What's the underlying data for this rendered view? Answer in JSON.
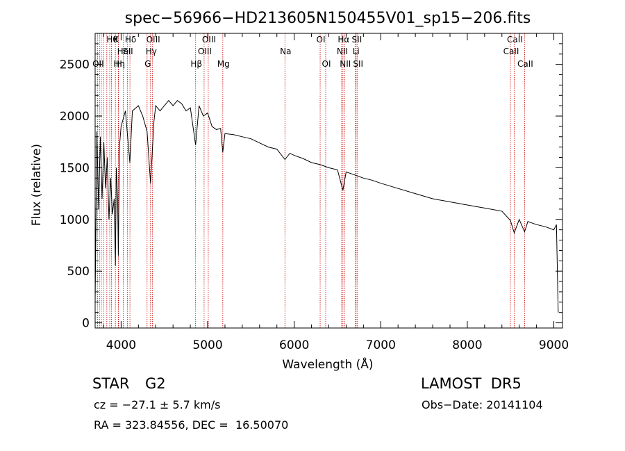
{
  "chart_data": {
    "type": "line",
    "title": "spec−56966−HD213605N150455V01_sp15−206.fits",
    "xlabel": "Wavelength (Å)",
    "ylabel": "Flux (relative)",
    "xlim": [
      3700,
      9100
    ],
    "ylim": [
      -50,
      2800
    ],
    "xticks": [
      4000,
      5000,
      6000,
      7000,
      8000,
      9000
    ],
    "xtick_labels": [
      "4000",
      "5000",
      "6000",
      "7000",
      "8000",
      "9000"
    ],
    "yticks": [
      0,
      500,
      1000,
      1500,
      2000,
      2500
    ],
    "ytick_labels": [
      "0",
      "500",
      "1000",
      "1500",
      "2000",
      "2500"
    ],
    "grid": false,
    "series": [
      {
        "x": [
          3700,
          3720,
          3740,
          3760,
          3780,
          3800,
          3820,
          3840,
          3860,
          3880,
          3900,
          3920,
          3934,
          3945,
          3960,
          3968,
          3980,
          4000,
          4050,
          4101,
          4130,
          4200,
          4250,
          4300,
          4340,
          4380,
          4400,
          4450,
          4500,
          4550,
          4600,
          4650,
          4700,
          4750,
          4800,
          4861,
          4900,
          4950,
          5000,
          5050,
          5100,
          5150,
          5175,
          5200,
          5300,
          5400,
          5500,
          5600,
          5700,
          5800,
          5893,
          5950,
          6000,
          6100,
          6200,
          6300,
          6400,
          6500,
          6563,
          6600,
          6700,
          6800,
          6900,
          7000,
          7200,
          7400,
          7600,
          7800,
          8000,
          8200,
          8400,
          8498,
          8542,
          8600,
          8662,
          8700,
          8800,
          8900,
          9000,
          9030,
          9050
        ],
        "y": [
          200,
          1850,
          1100,
          1800,
          1200,
          1750,
          1300,
          1600,
          1000,
          1400,
          1050,
          1200,
          550,
          1500,
          1200,
          650,
          1700,
          1900,
          2050,
          1550,
          2050,
          2100,
          2000,
          1850,
          1350,
          1950,
          2100,
          2050,
          2100,
          2150,
          2100,
          2150,
          2120,
          2050,
          2080,
          1720,
          2100,
          2000,
          2030,
          1900,
          1870,
          1880,
          1650,
          1830,
          1820,
          1800,
          1780,
          1740,
          1700,
          1680,
          1580,
          1640,
          1620,
          1590,
          1550,
          1530,
          1500,
          1480,
          1280,
          1460,
          1430,
          1400,
          1380,
          1350,
          1300,
          1250,
          1200,
          1170,
          1140,
          1110,
          1080,
          990,
          870,
          1000,
          880,
          980,
          950,
          930,
          900,
          950,
          100
        ]
      }
    ],
    "line_markers": [
      {
        "wavelength": 3727,
        "label": "OII",
        "row": 3
      },
      {
        "wavelength": 3750,
        "label": "",
        "row": 0
      },
      {
        "wavelength": 3771,
        "label": "",
        "row": 0
      },
      {
        "wavelength": 3798,
        "label": "",
        "row": 0
      },
      {
        "wavelength": 3835,
        "label": "",
        "row": 0
      },
      {
        "wavelength": 3869,
        "label": "",
        "row": 0
      },
      {
        "wavelength": 3889,
        "label": "Hθ",
        "row": 1
      },
      {
        "wavelength": 3934,
        "label": "K",
        "row": 1
      },
      {
        "wavelength": 3970,
        "label": "Hη",
        "row": 3
      },
      {
        "wavelength": 3968,
        "label": "H",
        "row": 3
      },
      {
        "wavelength": 4026,
        "label": "HeI",
        "row": 2
      },
      {
        "wavelength": 4072,
        "label": "SII",
        "row": 2
      },
      {
        "wavelength": 4102,
        "label": "Hδ",
        "row": 1
      },
      {
        "wavelength": 4300,
        "label": "G",
        "row": 3
      },
      {
        "wavelength": 4340,
        "label": "Hγ",
        "row": 2
      },
      {
        "wavelength": 4363,
        "label": "OIII",
        "row": 1
      },
      {
        "wavelength": 4861,
        "label": "Hβ",
        "row": 3
      },
      {
        "wavelength": 4959,
        "label": "OIII",
        "row": 2
      },
      {
        "wavelength": 5007,
        "label": "OIII",
        "row": 1
      },
      {
        "wavelength": 5175,
        "label": "Mg",
        "row": 3
      },
      {
        "wavelength": 5893,
        "label": "Na",
        "row": 2
      },
      {
        "wavelength": 6300,
        "label": "OI",
        "row": 1
      },
      {
        "wavelength": 6364,
        "label": "OI",
        "row": 3
      },
      {
        "wavelength": 6548,
        "label": "NII",
        "row": 2
      },
      {
        "wavelength": 6563,
        "label": "Hα",
        "row": 1
      },
      {
        "wavelength": 6583,
        "label": "NII",
        "row": 3
      },
      {
        "wavelength": 6707,
        "label": "Li",
        "row": 2
      },
      {
        "wavelength": 6716,
        "label": "SII",
        "row": 1
      },
      {
        "wavelength": 6731,
        "label": "SII",
        "row": 3
      },
      {
        "wavelength": 8498,
        "label": "CaII",
        "row": 2
      },
      {
        "wavelength": 8542,
        "label": "CaII",
        "row": 1
      },
      {
        "wavelength": 8662,
        "label": "CaII",
        "row": 3
      }
    ]
  },
  "info": {
    "class": "STAR",
    "subclass": "G2",
    "survey": "LAMOST  DR5",
    "cz": "cz = −27.1 ± 5.7 km/s",
    "obs_date": "Obs−Date: 20141104",
    "radec": "RA = 323.84556, DEC =  16.50070"
  },
  "colors": {
    "marker": "#cc0000",
    "line": "#000000"
  }
}
